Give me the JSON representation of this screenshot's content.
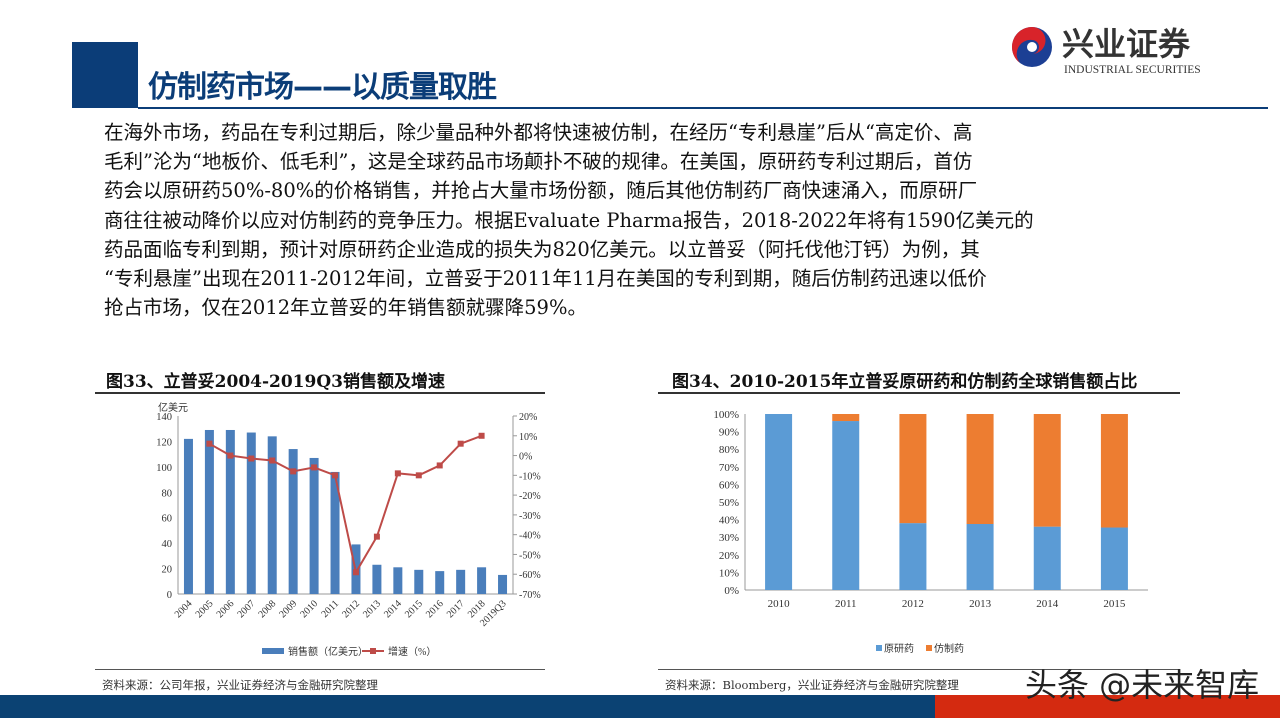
{
  "header": {
    "title": "仿制药市场——以质量取胜",
    "logo_cn": "兴业证券",
    "logo_en": "INDUSTRIAL SECURITIES"
  },
  "body_lines": [
    "在海外市场，药品在专利过期后，除少量品种外都将快速被仿制，在经历“专利悬崖”后从“高定价、高",
    "毛利”沦为“地板价、低毛利”，这是全球药品市场颠扑不破的规律。在美国，原研药专利过期后，首仿",
    "药会以原研药50%-80%的价格销售，并抢占大量市场份额，随后其他仿制药厂商快速涌入，而原研厂",
    "商往往被动降价以应对仿制药的竞争压力。根据Evaluate Pharma报告，2018-2022年将有1590亿美元的",
    "药品面临专利到期，预计对原研药企业造成的损失为820亿美元。以立普妥（阿托伐他汀钙）为例，其",
    "“专利悬崖”出现在2011-2012年间，立普妥于2011年11月在美国的专利到期，随后仿制药迅速以低价",
    "抢占市场，仅在2012年立普妥的年销售额就骤降59%。"
  ],
  "chart_data": [
    {
      "type": "bar+line",
      "title": "图33、立普妥2004-2019Q3销售额及增速",
      "ylabel": "亿美元",
      "categories": [
        "2004",
        "2005",
        "2006",
        "2007",
        "2008",
        "2009",
        "2010",
        "2011",
        "2012",
        "2013",
        "2014",
        "2015",
        "2016",
        "2017",
        "2018",
        "2019Q3"
      ],
      "ylim": [
        0,
        140
      ],
      "yticks": [
        "0",
        "20",
        "40",
        "60",
        "80",
        "100",
        "120",
        "140"
      ],
      "y2lim": [
        -70,
        20
      ],
      "y2ticks": [
        "20%",
        "10%",
        "0%",
        "-10%",
        "-20%",
        "-30%",
        "-40%",
        "-50%",
        "-60%",
        "-70%"
      ],
      "series": [
        {
          "name": "销售额（亿美元）",
          "type": "bar",
          "color": "#4a7ebb",
          "values": [
            122,
            129,
            129,
            127,
            124,
            114,
            107,
            96,
            39,
            23,
            21,
            19,
            18,
            19,
            21,
            15
          ]
        },
        {
          "name": "增速（%）",
          "type": "line",
          "axis": "right",
          "color": "#be4b48",
          "values": [
            null,
            6,
            0,
            -1.5,
            -2.5,
            -8,
            -6,
            -10,
            -59,
            -41,
            -9,
            -10,
            -5,
            6,
            10,
            null
          ]
        }
      ],
      "legend": "bottom",
      "grid": false,
      "source": "资料来源：公司年报，兴业证券经济与金融研究院整理"
    },
    {
      "type": "stacked-bar",
      "title": "图34、2010-2015年立普妥原研药和仿制药全球销售额占比",
      "categories": [
        "2010",
        "2011",
        "2012",
        "2013",
        "2014",
        "2015"
      ],
      "ylim": [
        0,
        100
      ],
      "yticks": [
        "0%",
        "10%",
        "20%",
        "30%",
        "40%",
        "50%",
        "60%",
        "70%",
        "80%",
        "90%",
        "100%"
      ],
      "series": [
        {
          "name": "原研药",
          "color": "#5b9bd5",
          "values": [
            100,
            96,
            38,
            37.5,
            36,
            35.5
          ]
        },
        {
          "name": "仿制药",
          "color": "#ed7d31",
          "values": [
            0,
            4,
            62,
            62.5,
            64,
            64.5
          ]
        }
      ],
      "legend": "bottom",
      "grid": false,
      "source": "资料来源：Bloomberg，兴业证券经济与金融研究院整理"
    }
  ],
  "watermark": "头条 @未来智库"
}
